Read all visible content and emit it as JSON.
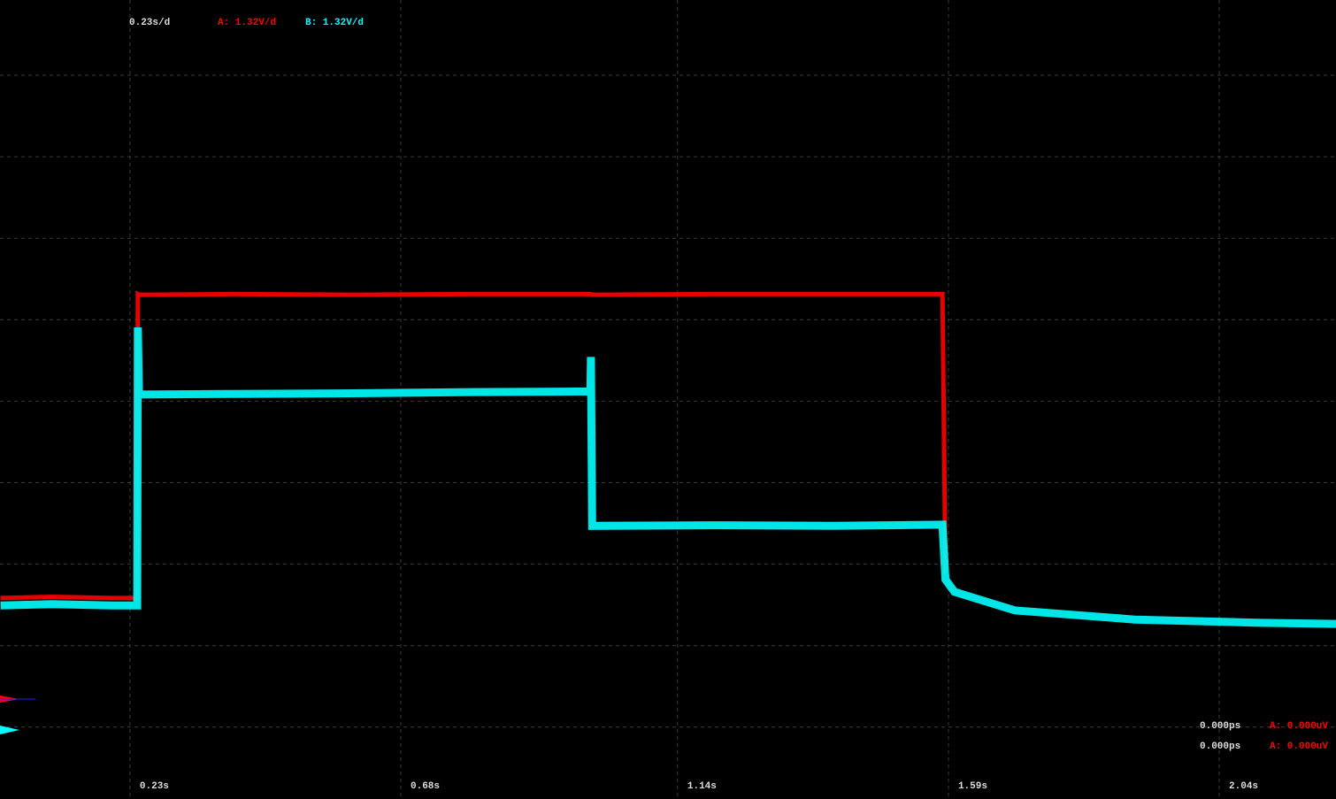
{
  "chart_data": {
    "type": "line",
    "title": "0.23s/d",
    "x": [
      0.015,
      0.1,
      0.2,
      0.242,
      0.243,
      0.245,
      0.4,
      0.6,
      0.8,
      0.995,
      0.996,
      0.998,
      1.2,
      1.4,
      1.58,
      1.585,
      1.6,
      1.7,
      1.9,
      2.1,
      2.234
    ],
    "series": [
      {
        "name": "A: 1.32V/d",
        "color": "#ff0000",
        "values": [
          2.1,
          2.12,
          2.1,
          2.1,
          7.03,
          7.02,
          7.03,
          7.02,
          7.03,
          7.03,
          7.03,
          7.02,
          7.03,
          7.03,
          7.03,
          2.5,
          null,
          null,
          null,
          null,
          null
        ]
      },
      {
        "name": "B: 1.32V/d",
        "color": "#00ffff",
        "values": [
          1.98,
          2.0,
          1.98,
          1.98,
          6.49,
          5.4,
          5.41,
          5.42,
          5.44,
          5.45,
          6.01,
          3.27,
          3.28,
          3.27,
          3.29,
          2.4,
          2.2,
          1.9,
          1.75,
          1.7,
          1.68
        ]
      }
    ],
    "xlim": [
      0.014,
      2.234
    ],
    "ylim": [
      -1.16,
      11.8
    ],
    "xticks": [
      {
        "value": 0.23,
        "label": "0.23s"
      },
      {
        "value": 0.68,
        "label": "0.68s"
      },
      {
        "value": 1.14,
        "label": "1.14s"
      },
      {
        "value": 1.59,
        "label": "1.59s"
      },
      {
        "value": 2.04,
        "label": "2.04s"
      }
    ],
    "grid": true,
    "readouts": [
      {
        "time": "0.000ps",
        "value": "A: 0.000uV"
      },
      {
        "time": "0.000ps",
        "value": "A: 0.000uV"
      }
    ]
  }
}
